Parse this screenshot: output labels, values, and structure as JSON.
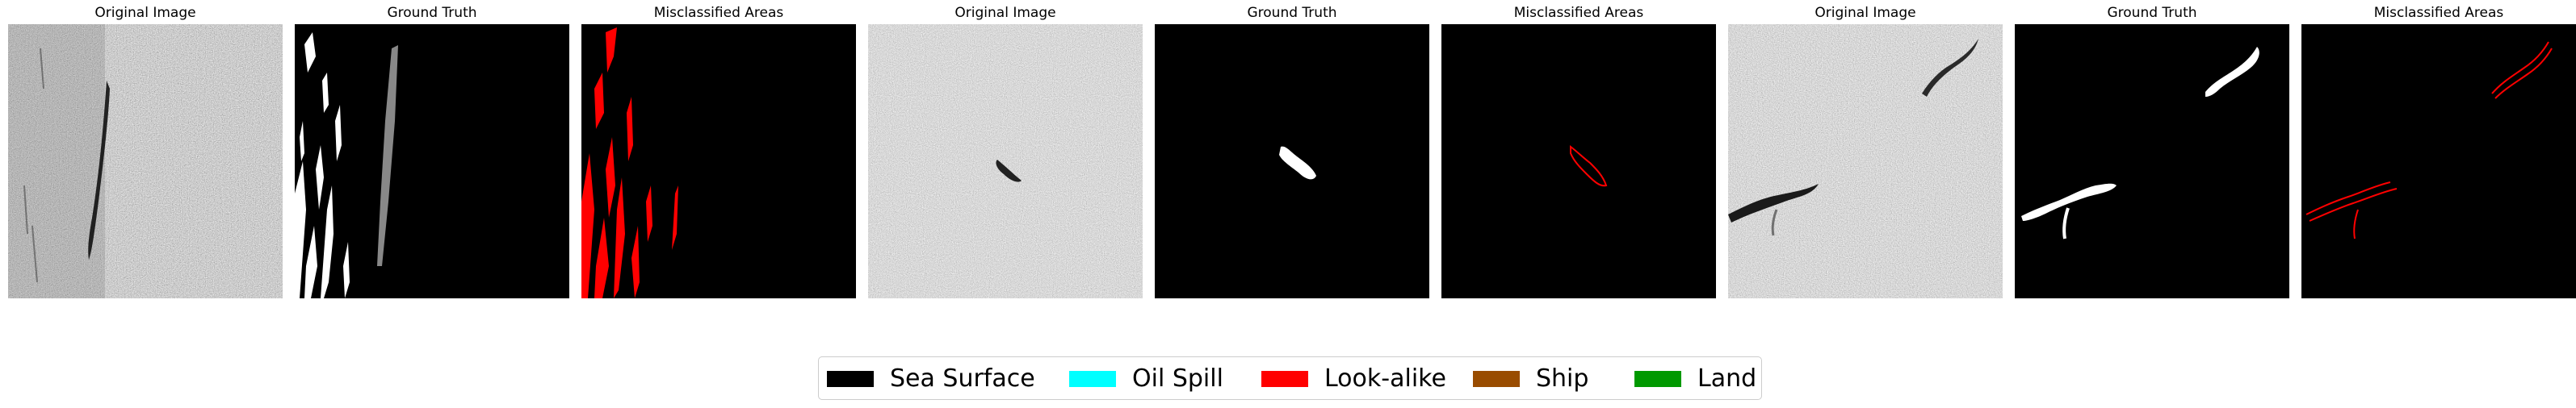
{
  "panels": [
    {
      "title": "Original Image",
      "kind": "sar"
    },
    {
      "title": "Ground Truth",
      "kind": "gt"
    },
    {
      "title": "Misclassified Areas",
      "kind": "mis"
    },
    {
      "title": "Original Image",
      "kind": "sar"
    },
    {
      "title": "Ground Truth",
      "kind": "gt"
    },
    {
      "title": "Misclassified Areas",
      "kind": "mis"
    },
    {
      "title": "Original Image",
      "kind": "sar"
    },
    {
      "title": "Ground Truth",
      "kind": "gt"
    },
    {
      "title": "Misclassified Areas",
      "kind": "mis"
    }
  ],
  "legend": [
    {
      "label": "Sea Surface",
      "color": "#000000"
    },
    {
      "label": "Oil Spill",
      "color": "#00ffff"
    },
    {
      "label": "Look-alike",
      "color": "#ff0000"
    },
    {
      "label": "Ship",
      "color": "#994c00"
    },
    {
      "label": "Land",
      "color": "#009900"
    }
  ]
}
